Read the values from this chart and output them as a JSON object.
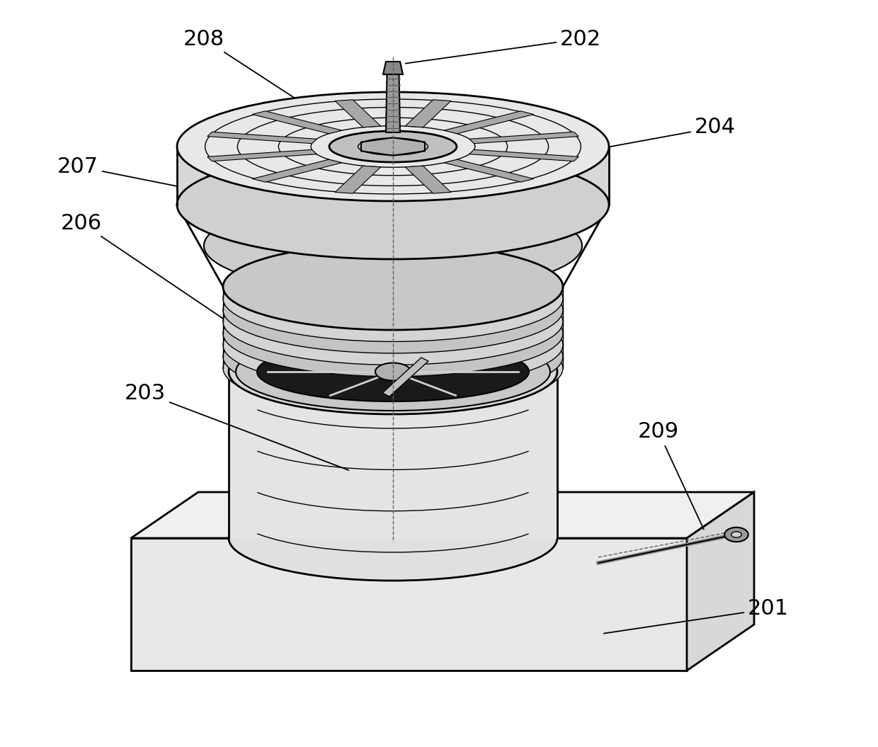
{
  "title": "",
  "background_color": "#ffffff",
  "line_color": "#000000",
  "label_fontsize": 22,
  "figsize": [
    12.4,
    10.55
  ],
  "dpi": 100
}
